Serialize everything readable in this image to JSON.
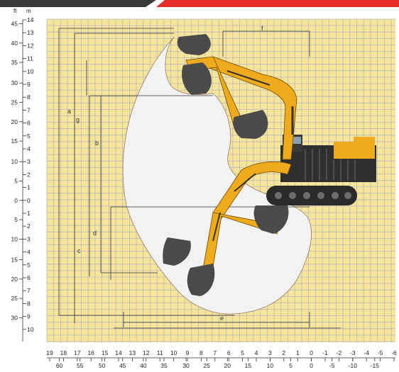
{
  "units": {
    "feet": "ft",
    "meters": "m"
  },
  "left_m_labels": [
    "14",
    "13",
    "12",
    "11",
    "10",
    "9",
    "8",
    "7",
    "6",
    "5",
    "4",
    "3",
    "2",
    "1",
    "0",
    "1",
    "2",
    "3",
    "4",
    "5",
    "6",
    "7",
    "8",
    "9",
    "10"
  ],
  "left_ft_labels": [
    {
      "text": "45",
      "m": 13.7
    },
    {
      "text": "40",
      "m": 12.2
    },
    {
      "text": "35",
      "m": 10.7
    },
    {
      "text": "30",
      "m": 9.1
    },
    {
      "text": "25",
      "m": 7.6
    },
    {
      "text": "20",
      "m": 6.1
    },
    {
      "text": "15",
      "m": 4.6
    },
    {
      "text": "10",
      "m": 3.0
    },
    {
      "text": "5",
      "m": 1.5
    },
    {
      "text": "0",
      "m": 0
    },
    {
      "text": "5",
      "m": -1.5
    },
    {
      "text": "10",
      "m": -3.0
    },
    {
      "text": "15",
      "m": -4.6
    },
    {
      "text": "20",
      "m": -6.1
    },
    {
      "text": "25",
      "m": -7.6
    },
    {
      "text": "30",
      "m": -9.1
    }
  ],
  "bottom_m_labels": [
    "19",
    "18",
    "17",
    "16",
    "15",
    "14",
    "13",
    "12",
    "11",
    "10",
    "9",
    "8",
    "7",
    "6",
    "5",
    "4",
    "3",
    "2",
    "1",
    "0",
    "-1",
    "-2",
    "-3",
    "-4",
    "-5",
    "-6"
  ],
  "bottom_ft_labels": [
    {
      "text": "60",
      "m": 18.3
    },
    {
      "text": "55",
      "m": 16.8
    },
    {
      "text": "50",
      "m": 15.2
    },
    {
      "text": "45",
      "m": 13.7
    },
    {
      "text": "40",
      "m": 12.2
    },
    {
      "text": "35",
      "m": 10.7
    },
    {
      "text": "30",
      "m": 9.1
    },
    {
      "text": "25",
      "m": 7.6
    },
    {
      "text": "20",
      "m": 6.1
    },
    {
      "text": "15",
      "m": 4.6
    },
    {
      "text": "10",
      "m": 3.0
    },
    {
      "text": "5",
      "m": 1.5
    },
    {
      "text": "0",
      "m": 0
    },
    {
      "text": "-5",
      "m": -1.5
    },
    {
      "text": "-10",
      "m": -3.0
    },
    {
      "text": "-15",
      "m": -4.6
    }
  ],
  "dimension_letters": {
    "a": "a",
    "b": "b",
    "c": "c",
    "d": "d",
    "e": "e",
    "f": "f",
    "g": "g"
  },
  "colors": {
    "grid_fill": "#f8e59c",
    "grid_line": "#b9b9b9",
    "envelope": "#f2f2f2",
    "machine": "#f0ab1d",
    "machine_dark": "#2a2a2a",
    "header_dark": "#3a3a3a",
    "header_red": "#e52b27"
  }
}
